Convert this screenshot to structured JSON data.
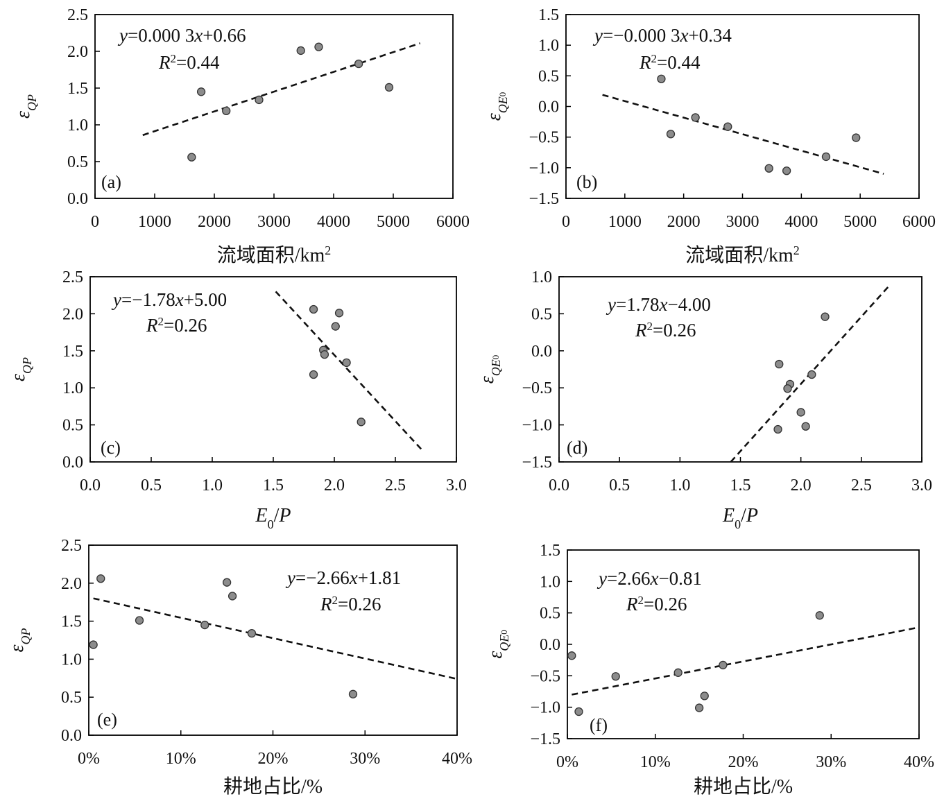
{
  "chart_data": [
    {
      "type": "scatter",
      "panel_label": "(a)",
      "xlabel": "流域面积/km",
      "xlabel_sup": "2",
      "ylabel": "ε",
      "ylabel_sub": "QP",
      "xlim": [
        0,
        6000
      ],
      "ylim": [
        0.0,
        2.5
      ],
      "xticks": [
        "0",
        "1000",
        "2000",
        "3000",
        "4000",
        "5000",
        "6000"
      ],
      "yticks": [
        "0.0",
        "0.5",
        "1.0",
        "1.5",
        "2.0",
        "2.5"
      ],
      "equation": "y=0.000 3x+0.66",
      "r2": "R2=0.44",
      "points": [
        [
          1620,
          0.56
        ],
        [
          1780,
          1.45
        ],
        [
          2200,
          1.19
        ],
        [
          2750,
          1.34
        ],
        [
          3450,
          2.01
        ],
        [
          3750,
          2.06
        ],
        [
          4420,
          1.83
        ],
        [
          4930,
          1.51
        ]
      ],
      "trend": [
        [
          800,
          0.86
        ],
        [
          5450,
          2.11
        ]
      ]
    },
    {
      "type": "scatter",
      "panel_label": "(b)",
      "xlabel": "流域面积/km",
      "xlabel_sup": "2",
      "ylabel": "ε",
      "ylabel_sub": "QE0",
      "xlim": [
        0,
        6000
      ],
      "ylim": [
        -1.5,
        1.5
      ],
      "xticks": [
        "0",
        "1000",
        "2000",
        "3000",
        "4000",
        "5000",
        "6000"
      ],
      "yticks": [
        "−1.5",
        "−1.0",
        "−0.5",
        "0.0",
        "0.5",
        "1.0",
        "1.5"
      ],
      "equation": "y=−0.000 3x+0.34",
      "r2": "R2=0.44",
      "points": [
        [
          1620,
          0.45
        ],
        [
          1780,
          -0.45
        ],
        [
          2200,
          -0.18
        ],
        [
          2750,
          -0.33
        ],
        [
          3450,
          -1.01
        ],
        [
          3750,
          -1.05
        ],
        [
          4420,
          -0.82
        ],
        [
          4930,
          -0.51
        ]
      ],
      "trend": [
        [
          620,
          0.19
        ],
        [
          5400,
          -1.1
        ]
      ]
    },
    {
      "type": "scatter",
      "panel_label": "(c)",
      "xlabel": "E",
      "xlabel_sub": "0",
      "xlabel_rest": "/P",
      "ylabel": "ε",
      "ylabel_sub": "QP",
      "xlim": [
        0.0,
        3.0
      ],
      "ylim": [
        0.0,
        2.5
      ],
      "xticks": [
        "0.0",
        "0.5",
        "1.0",
        "1.5",
        "2.0",
        "2.5",
        "3.0"
      ],
      "yticks": [
        "0.0",
        "0.5",
        "1.0",
        "1.5",
        "2.0",
        "2.5"
      ],
      "equation": "y=−1.78x+5.00",
      "r2": "R2=0.26",
      "points": [
        [
          1.83,
          2.06
        ],
        [
          2.04,
          2.01
        ],
        [
          2.01,
          1.83
        ],
        [
          1.91,
          1.51
        ],
        [
          1.92,
          1.45
        ],
        [
          2.1,
          1.34
        ],
        [
          1.83,
          1.18
        ],
        [
          2.22,
          0.54
        ]
      ],
      "trend": [
        [
          1.52,
          2.3
        ],
        [
          2.73,
          0.14
        ]
      ]
    },
    {
      "type": "scatter",
      "panel_label": "(d)",
      "xlabel": "E",
      "xlabel_sub": "0",
      "xlabel_rest": "/P",
      "ylabel": "ε",
      "ylabel_sub": "QE0",
      "xlim": [
        0.0,
        3.0
      ],
      "ylim": [
        -1.5,
        1.0
      ],
      "xticks": [
        "0.0",
        "0.5",
        "1.0",
        "1.5",
        "2.0",
        "2.5",
        "3.0"
      ],
      "yticks": [
        "−1.5",
        "−1.0",
        "−0.5",
        "0.0",
        "0.5",
        "1.0"
      ],
      "equation": "y=1.78x−4.00",
      "r2": "R2=0.26",
      "points": [
        [
          2.2,
          0.46
        ],
        [
          1.82,
          -0.18
        ],
        [
          2.09,
          -0.32
        ],
        [
          1.91,
          -0.45
        ],
        [
          1.89,
          -0.51
        ],
        [
          2.0,
          -0.83
        ],
        [
          2.04,
          -1.02
        ],
        [
          1.81,
          -1.06
        ]
      ],
      "trend": [
        [
          1.42,
          -1.5
        ],
        [
          2.72,
          0.86
        ]
      ]
    },
    {
      "type": "scatter",
      "panel_label": "(e)",
      "xlabel": "耕地占比/%",
      "ylabel": "ε",
      "ylabel_sub": "QP",
      "xlim": [
        0,
        40
      ],
      "ylim": [
        0.0,
        2.5
      ],
      "xticks": [
        "0%",
        "10%",
        "20%",
        "30%",
        "40%"
      ],
      "yticks": [
        "0.0",
        "0.5",
        "1.0",
        "1.5",
        "2.0",
        "2.5"
      ],
      "equation": "y=−2.66x+1.81",
      "r2": "R2=0.26",
      "points": [
        [
          1.3,
          2.06
        ],
        [
          15.0,
          2.01
        ],
        [
          15.6,
          1.83
        ],
        [
          5.5,
          1.51
        ],
        [
          12.6,
          1.45
        ],
        [
          17.7,
          1.34
        ],
        [
          0.5,
          1.19
        ],
        [
          28.7,
          0.54
        ]
      ],
      "trend": [
        [
          0.5,
          1.8
        ],
        [
          40,
          0.74
        ]
      ]
    },
    {
      "type": "scatter",
      "panel_label": "(f)",
      "xlabel": "耕地占比/%",
      "ylabel": "ε",
      "ylabel_sub": "QE0",
      "xlim": [
        0,
        40
      ],
      "ylim": [
        -1.5,
        1.5
      ],
      "xticks": [
        "0%",
        "10%",
        "20%",
        "30%",
        "40%"
      ],
      "yticks": [
        "−1.5",
        "−1.0",
        "−0.5",
        "0.0",
        "0.5",
        "1.0",
        "1.5"
      ],
      "equation": "y=2.66x−0.81",
      "r2": "R2=0.26",
      "points": [
        [
          28.7,
          0.46
        ],
        [
          0.5,
          -0.18
        ],
        [
          17.7,
          -0.33
        ],
        [
          12.6,
          -0.45
        ],
        [
          5.5,
          -0.51
        ],
        [
          15.6,
          -0.82
        ],
        [
          15.0,
          -1.01
        ],
        [
          1.3,
          -1.07
        ]
      ],
      "trend": [
        [
          0.5,
          -0.8
        ],
        [
          40,
          0.27
        ]
      ]
    }
  ]
}
